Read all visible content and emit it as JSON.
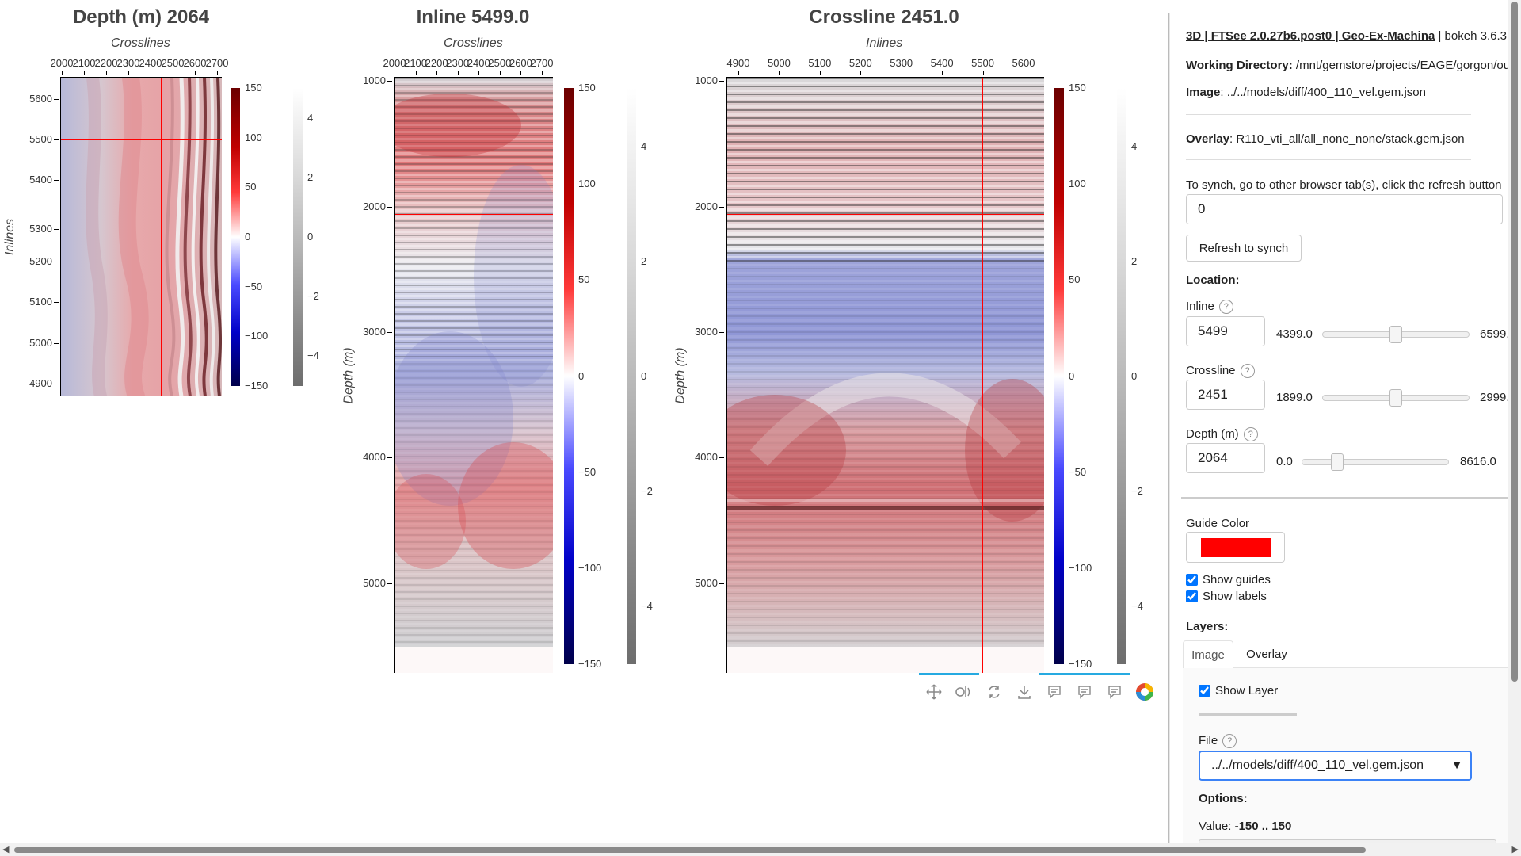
{
  "plots": {
    "depth": {
      "title": "Depth (m) 2064",
      "xlabel": "Crosslines",
      "ylabel": "Inlines",
      "xticks": [
        "2000",
        "2100",
        "2200",
        "2300",
        "2400",
        "2500",
        "2600",
        "2700"
      ],
      "yticks": [
        "5600",
        "5500",
        "5400",
        "5300",
        "5200",
        "5100",
        "5000",
        "4900"
      ]
    },
    "inline": {
      "title": "Inline 5499.0",
      "xlabel": "Crosslines",
      "ylabel": "Depth (m)",
      "xticks": [
        "2000",
        "2100",
        "2200",
        "2300",
        "2400",
        "2500",
        "2600",
        "2700"
      ],
      "yticks": [
        "1000",
        "2000",
        "3000",
        "4000",
        "5000"
      ]
    },
    "crossline": {
      "title": "Crossline 2451.0",
      "xlabel": "Inlines",
      "ylabel": "Depth (m)",
      "xticks": [
        "4900",
        "5000",
        "5100",
        "5200",
        "5300",
        "5400",
        "5500",
        "5600"
      ],
      "yticks": [
        "1000",
        "2000",
        "3000",
        "4000",
        "5000"
      ]
    }
  },
  "colorbars": {
    "diverging_small": [
      "150",
      "100",
      "50",
      "0",
      "−50",
      "−100",
      "−150"
    ],
    "gray_small": [
      "4",
      "2",
      "0",
      "−2",
      "−4"
    ],
    "diverging_tall": [
      "150",
      "100",
      "50",
      "0",
      "−50",
      "−100",
      "−150"
    ],
    "gray_tall": [
      "4",
      "2",
      "0",
      "−2",
      "−4"
    ]
  },
  "colors": {
    "guide": "#ff0000",
    "accent": "#26aae1",
    "checkbox": "#0075ff"
  },
  "toolbar": {
    "icons": [
      "pan-icon",
      "wheel-zoom-icon",
      "reset-icon",
      "save-icon",
      "hover-icon-1",
      "hover-icon-2",
      "hover-icon-3",
      "bokeh-logo-icon"
    ]
  },
  "panel": {
    "header_bold": "3D | FTSee 2.0.27b6.post0 | Geo-Ex-Machina",
    "header_rest": " | bokeh 3.6.3",
    "working_dir_label": "Working Directory:",
    "working_dir_value": " /mnt/gemstore/projects/EAGE/gorgon/ou",
    "image_label": "Image",
    "image_value": ": ../../models/diff/400_110_vel.gem.json",
    "overlay_label": "Overlay",
    "overlay_value": ": R110_vti_all/all_none_none/stack.gem.json",
    "synch_text": "To synch, go to other browser tab(s), click the refresh button",
    "synch_value": "0",
    "refresh_label": "Refresh to synch",
    "location_label": "Location:",
    "inline_label": "Inline",
    "inline_value": "5499",
    "inline_min": "4399.0",
    "inline_max": "6599.",
    "inline_pos": 0.5,
    "crossline_label": "Crossline",
    "crossline_value": "2451",
    "crossline_min": "1899.0",
    "crossline_max": "2999.",
    "crossline_pos": 0.5,
    "depth_label": "Depth (m)",
    "depth_value": "2064",
    "depth_min": "0.0",
    "depth_max": "8616.0",
    "depth_pos": 0.24,
    "guide_color_label": "Guide Color",
    "show_guides": "Show guides",
    "show_labels": "Show labels",
    "layers_label": "Layers:",
    "tab_image": "Image",
    "tab_overlay": "Overlay",
    "show_layer": "Show Layer",
    "file_label": "File",
    "file_value": "../../models/diff/400_110_vel.gem.json",
    "options_label": "Options:",
    "value_label": "Value: ",
    "value_range": "-150 .. 150"
  }
}
